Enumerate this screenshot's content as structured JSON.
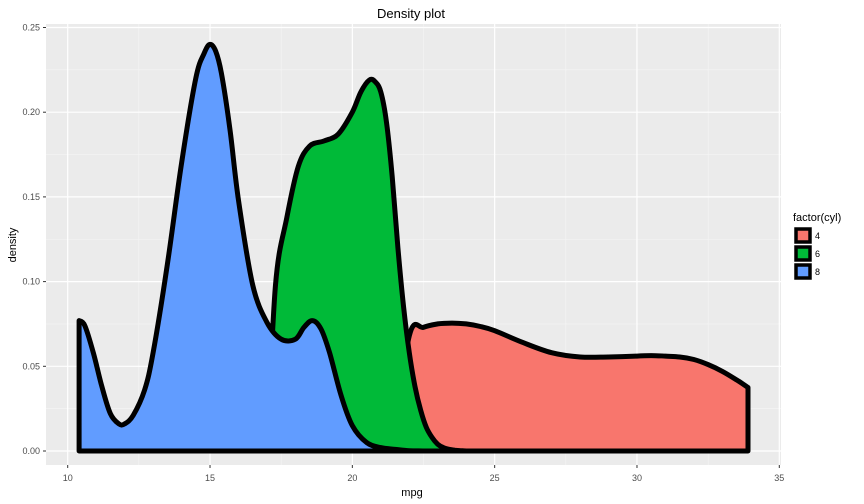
{
  "chart_data": {
    "type": "area",
    "title": "Density plot",
    "xlabel": "mpg",
    "ylabel": "density",
    "xlim": [
      10,
      35
    ],
    "ylim": [
      0,
      0.25
    ],
    "x_ticks": [
      "10",
      "15",
      "20",
      "25",
      "30",
      "35"
    ],
    "y_ticks": [
      "0.00",
      "0.05",
      "0.10",
      "0.15",
      "0.20",
      "0.25"
    ],
    "grid": true,
    "legend": {
      "title": "factor(cyl)",
      "position": "right"
    },
    "series": [
      {
        "name": "4",
        "color": "#F8766D",
        "x": [
          21.4,
          22.0,
          22.5,
          23.0,
          23.5,
          24.0,
          24.5,
          25.0,
          26.0,
          27.0,
          28.0,
          29.0,
          30.0,
          30.5,
          31.0,
          31.5,
          32.0,
          32.5,
          33.0,
          33.5,
          33.9
        ],
        "y": [
          0.0,
          0.068,
          0.073,
          0.075,
          0.0755,
          0.075,
          0.0735,
          0.071,
          0.064,
          0.058,
          0.0555,
          0.0555,
          0.056,
          0.0563,
          0.056,
          0.0555,
          0.054,
          0.051,
          0.047,
          0.042,
          0.0375
        ]
      },
      {
        "name": "6",
        "color": "#00BA38",
        "x": [
          17.0,
          17.3,
          17.7,
          18.1,
          18.5,
          19.0,
          19.5,
          20.0,
          20.3,
          20.6,
          20.8,
          21.0,
          21.2,
          21.4,
          21.6,
          21.8,
          22.0,
          22.2,
          22.4,
          22.6,
          22.8,
          23.0,
          23.2,
          23.4,
          23.6,
          23.8,
          24.0
        ],
        "y": [
          0.0,
          0.098,
          0.138,
          0.168,
          0.18,
          0.183,
          0.187,
          0.2,
          0.212,
          0.219,
          0.218,
          0.212,
          0.194,
          0.162,
          0.12,
          0.085,
          0.058,
          0.038,
          0.024,
          0.014,
          0.008,
          0.004,
          0.002,
          0.001,
          0.0005,
          0.0002,
          0.0
        ]
      },
      {
        "name": "8",
        "color": "#619CFF",
        "x": [
          10.4,
          10.6,
          10.9,
          11.2,
          11.5,
          11.8,
          12.0,
          12.3,
          12.7,
          13.0,
          13.5,
          14.0,
          14.5,
          14.8,
          15.0,
          15.2,
          15.4,
          15.7,
          16.0,
          16.5,
          17.0,
          17.5,
          18.0,
          18.3,
          18.6,
          18.9,
          19.2,
          19.6,
          20.0,
          20.5,
          21.0,
          21.5,
          22.0,
          22.5
        ],
        "y": [
          0.077,
          0.074,
          0.058,
          0.038,
          0.022,
          0.016,
          0.016,
          0.021,
          0.036,
          0.058,
          0.11,
          0.17,
          0.22,
          0.235,
          0.24,
          0.236,
          0.223,
          0.19,
          0.148,
          0.098,
          0.076,
          0.066,
          0.066,
          0.073,
          0.077,
          0.072,
          0.058,
          0.033,
          0.015,
          0.005,
          0.002,
          0.001,
          0.0002,
          0.0
        ]
      }
    ]
  }
}
